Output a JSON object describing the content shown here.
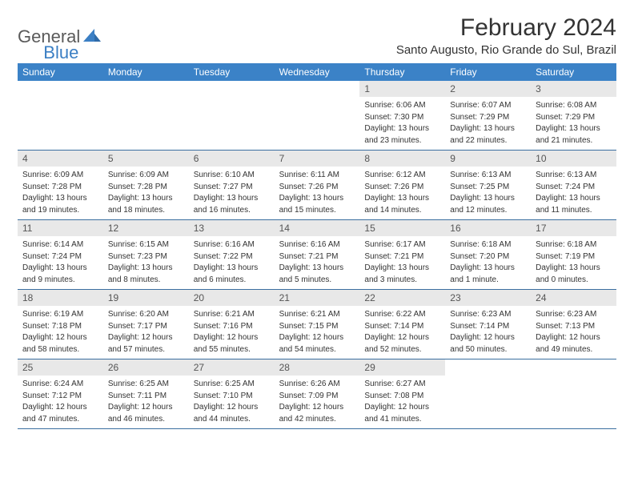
{
  "logo": {
    "text1": "General",
    "text2": "Blue"
  },
  "title": "February 2024",
  "location": "Santo Augusto, Rio Grande do Sul, Brazil",
  "weekdays": [
    "Sunday",
    "Monday",
    "Tuesday",
    "Wednesday",
    "Thursday",
    "Friday",
    "Saturday"
  ],
  "colors": {
    "header_bg": "#3b82c7",
    "header_text": "#ffffff",
    "daynum_bg": "#e8e8e8",
    "week_border": "#3b6fa0",
    "text": "#333333",
    "logo_accent": "#3b7fc4",
    "logo_gray": "#5a5a5a"
  },
  "weeks": [
    [
      {
        "empty": true
      },
      {
        "empty": true
      },
      {
        "empty": true
      },
      {
        "empty": true
      },
      {
        "num": "1",
        "sunrise": "Sunrise: 6:06 AM",
        "sunset": "Sunset: 7:30 PM",
        "daylight": "Daylight: 13 hours and 23 minutes."
      },
      {
        "num": "2",
        "sunrise": "Sunrise: 6:07 AM",
        "sunset": "Sunset: 7:29 PM",
        "daylight": "Daylight: 13 hours and 22 minutes."
      },
      {
        "num": "3",
        "sunrise": "Sunrise: 6:08 AM",
        "sunset": "Sunset: 7:29 PM",
        "daylight": "Daylight: 13 hours and 21 minutes."
      }
    ],
    [
      {
        "num": "4",
        "sunrise": "Sunrise: 6:09 AM",
        "sunset": "Sunset: 7:28 PM",
        "daylight": "Daylight: 13 hours and 19 minutes."
      },
      {
        "num": "5",
        "sunrise": "Sunrise: 6:09 AM",
        "sunset": "Sunset: 7:28 PM",
        "daylight": "Daylight: 13 hours and 18 minutes."
      },
      {
        "num": "6",
        "sunrise": "Sunrise: 6:10 AM",
        "sunset": "Sunset: 7:27 PM",
        "daylight": "Daylight: 13 hours and 16 minutes."
      },
      {
        "num": "7",
        "sunrise": "Sunrise: 6:11 AM",
        "sunset": "Sunset: 7:26 PM",
        "daylight": "Daylight: 13 hours and 15 minutes."
      },
      {
        "num": "8",
        "sunrise": "Sunrise: 6:12 AM",
        "sunset": "Sunset: 7:26 PM",
        "daylight": "Daylight: 13 hours and 14 minutes."
      },
      {
        "num": "9",
        "sunrise": "Sunrise: 6:13 AM",
        "sunset": "Sunset: 7:25 PM",
        "daylight": "Daylight: 13 hours and 12 minutes."
      },
      {
        "num": "10",
        "sunrise": "Sunrise: 6:13 AM",
        "sunset": "Sunset: 7:24 PM",
        "daylight": "Daylight: 13 hours and 11 minutes."
      }
    ],
    [
      {
        "num": "11",
        "sunrise": "Sunrise: 6:14 AM",
        "sunset": "Sunset: 7:24 PM",
        "daylight": "Daylight: 13 hours and 9 minutes."
      },
      {
        "num": "12",
        "sunrise": "Sunrise: 6:15 AM",
        "sunset": "Sunset: 7:23 PM",
        "daylight": "Daylight: 13 hours and 8 minutes."
      },
      {
        "num": "13",
        "sunrise": "Sunrise: 6:16 AM",
        "sunset": "Sunset: 7:22 PM",
        "daylight": "Daylight: 13 hours and 6 minutes."
      },
      {
        "num": "14",
        "sunrise": "Sunrise: 6:16 AM",
        "sunset": "Sunset: 7:21 PM",
        "daylight": "Daylight: 13 hours and 5 minutes."
      },
      {
        "num": "15",
        "sunrise": "Sunrise: 6:17 AM",
        "sunset": "Sunset: 7:21 PM",
        "daylight": "Daylight: 13 hours and 3 minutes."
      },
      {
        "num": "16",
        "sunrise": "Sunrise: 6:18 AM",
        "sunset": "Sunset: 7:20 PM",
        "daylight": "Daylight: 13 hours and 1 minute."
      },
      {
        "num": "17",
        "sunrise": "Sunrise: 6:18 AM",
        "sunset": "Sunset: 7:19 PM",
        "daylight": "Daylight: 13 hours and 0 minutes."
      }
    ],
    [
      {
        "num": "18",
        "sunrise": "Sunrise: 6:19 AM",
        "sunset": "Sunset: 7:18 PM",
        "daylight": "Daylight: 12 hours and 58 minutes."
      },
      {
        "num": "19",
        "sunrise": "Sunrise: 6:20 AM",
        "sunset": "Sunset: 7:17 PM",
        "daylight": "Daylight: 12 hours and 57 minutes."
      },
      {
        "num": "20",
        "sunrise": "Sunrise: 6:21 AM",
        "sunset": "Sunset: 7:16 PM",
        "daylight": "Daylight: 12 hours and 55 minutes."
      },
      {
        "num": "21",
        "sunrise": "Sunrise: 6:21 AM",
        "sunset": "Sunset: 7:15 PM",
        "daylight": "Daylight: 12 hours and 54 minutes."
      },
      {
        "num": "22",
        "sunrise": "Sunrise: 6:22 AM",
        "sunset": "Sunset: 7:14 PM",
        "daylight": "Daylight: 12 hours and 52 minutes."
      },
      {
        "num": "23",
        "sunrise": "Sunrise: 6:23 AM",
        "sunset": "Sunset: 7:14 PM",
        "daylight": "Daylight: 12 hours and 50 minutes."
      },
      {
        "num": "24",
        "sunrise": "Sunrise: 6:23 AM",
        "sunset": "Sunset: 7:13 PM",
        "daylight": "Daylight: 12 hours and 49 minutes."
      }
    ],
    [
      {
        "num": "25",
        "sunrise": "Sunrise: 6:24 AM",
        "sunset": "Sunset: 7:12 PM",
        "daylight": "Daylight: 12 hours and 47 minutes."
      },
      {
        "num": "26",
        "sunrise": "Sunrise: 6:25 AM",
        "sunset": "Sunset: 7:11 PM",
        "daylight": "Daylight: 12 hours and 46 minutes."
      },
      {
        "num": "27",
        "sunrise": "Sunrise: 6:25 AM",
        "sunset": "Sunset: 7:10 PM",
        "daylight": "Daylight: 12 hours and 44 minutes."
      },
      {
        "num": "28",
        "sunrise": "Sunrise: 6:26 AM",
        "sunset": "Sunset: 7:09 PM",
        "daylight": "Daylight: 12 hours and 42 minutes."
      },
      {
        "num": "29",
        "sunrise": "Sunrise: 6:27 AM",
        "sunset": "Sunset: 7:08 PM",
        "daylight": "Daylight: 12 hours and 41 minutes."
      },
      {
        "empty": true
      },
      {
        "empty": true
      }
    ]
  ]
}
